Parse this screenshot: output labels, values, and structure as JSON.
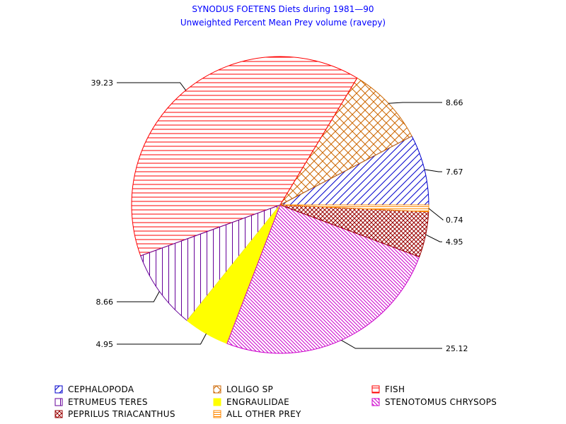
{
  "chart_data": {
    "type": "pie",
    "title": "SYNODUS FOETENS Diets during 1981—90",
    "subtitle": "Unweighted Percent Mean Prey volume (ravepy)",
    "slices": [
      {
        "name": "CEPHALOPODA",
        "value": 7.67,
        "label": "7.67",
        "color": "#0000cc",
        "pattern": "diag-up"
      },
      {
        "name": "LOLIGO SP",
        "value": 8.66,
        "label": "8.66",
        "color": "#cc6600",
        "pattern": "cross"
      },
      {
        "name": "FISH",
        "value": 39.23,
        "label": "39.23",
        "color": "#ff0000",
        "pattern": "horizontal"
      },
      {
        "name": "ETRUMEUS TERES",
        "value": 8.66,
        "label": "8.66",
        "color": "#660099",
        "pattern": "vertical"
      },
      {
        "name": "ENGRAULIDAE",
        "value": 4.95,
        "label": "4.95",
        "color": "#ffff00",
        "pattern": "solid"
      },
      {
        "name": "STENOTOMUS CHRYSOPS",
        "value": 25.12,
        "label": "25.12",
        "color": "#cc00cc",
        "pattern": "diag-down"
      },
      {
        "name": "PEPRILUS TRIACANTHUS",
        "value": 4.95,
        "label": "4.95",
        "color": "#990000",
        "pattern": "cross-fine"
      },
      {
        "name": "ALL OTHER PREY",
        "value": 0.74,
        "label": "0.74",
        "color": "#ff8800",
        "pattern": "horizontal-fine"
      }
    ],
    "legend_placement": "bottom"
  }
}
